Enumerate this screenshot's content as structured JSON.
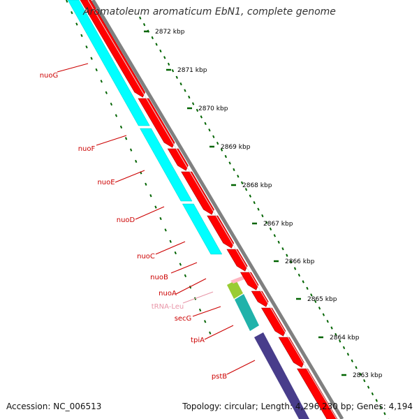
{
  "title": "Aromatoleum aromaticum EbN1, complete genome",
  "footer": {
    "accession_label": "Accession:",
    "accession": "NC_006513",
    "topology_label": "Topology:",
    "topology": "circular;",
    "length_label": "Length:",
    "length": "4,296,230 bp;",
    "genes_label": "Genes:",
    "genes": "4,194"
  },
  "colors": {
    "forward_cds": "#ff0000",
    "reverse_cds": "#00ffff",
    "trna": "#ffb6c1",
    "label_red": "#cc0000",
    "label_pink": "#e896a8",
    "ruler": "#006400",
    "backbone": "#808080",
    "secG": "#99cc33",
    "tpiA": "#20b2aa",
    "pstB": "#483d8b"
  },
  "ruler": {
    "unit": "kbp",
    "ticks": [
      "2872 kbp",
      "2871 kbp",
      "2870 kbp",
      "2869 kbp",
      "2868 kbp",
      "2867 kbp",
      "2866 kbp",
      "2865 kbp",
      "2864 kbp",
      "2863 kbp"
    ]
  },
  "genes": [
    {
      "name": "nuoG",
      "type": "cds"
    },
    {
      "name": "nuoF",
      "type": "cds"
    },
    {
      "name": "nuoE",
      "type": "cds"
    },
    {
      "name": "nuoD",
      "type": "cds"
    },
    {
      "name": "nuoC",
      "type": "cds"
    },
    {
      "name": "nuoB",
      "type": "cds"
    },
    {
      "name": "nuoA",
      "type": "cds"
    },
    {
      "name": "tRNA-Leu",
      "type": "trna"
    },
    {
      "name": "secG",
      "type": "cds"
    },
    {
      "name": "tpiA",
      "type": "cds"
    },
    {
      "name": "pstB",
      "type": "cds"
    }
  ]
}
